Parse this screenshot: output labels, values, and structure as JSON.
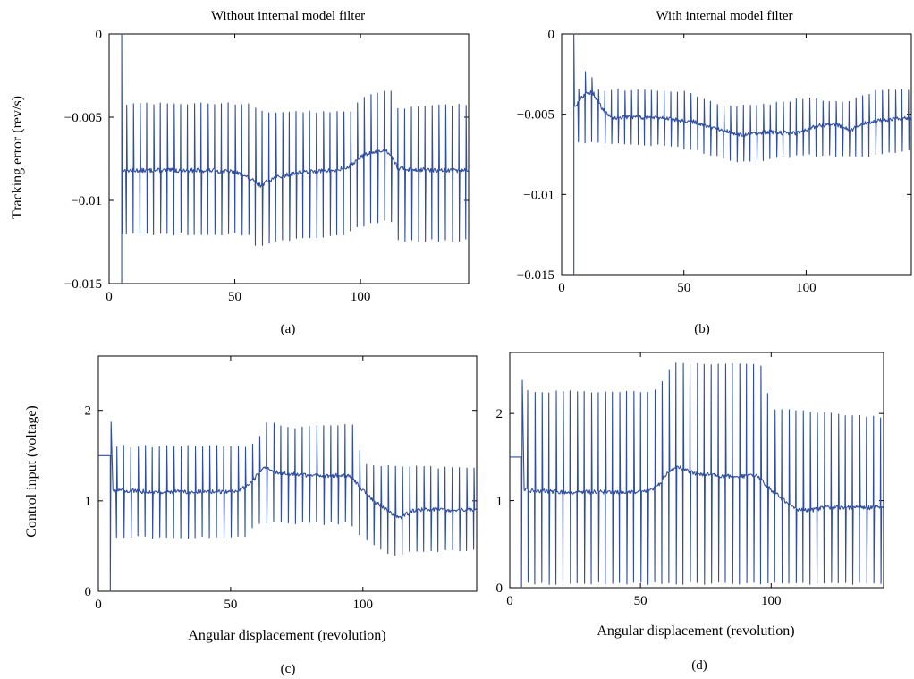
{
  "figure": {
    "panels": [
      {
        "id": "a",
        "title": "Without internal model filter",
        "ylabel": "Tracking error (rev/s)",
        "xlabel": "",
        "caption": "(a)",
        "x_ticks": [
          {
            "v": 0,
            "t": "0"
          },
          {
            "v": 50,
            "t": "50"
          },
          {
            "v": 100,
            "t": "100"
          }
        ],
        "y_ticks": [
          {
            "v": 0,
            "t": "0"
          },
          {
            "v": -0.005,
            "t": "−0.005"
          },
          {
            "v": -0.01,
            "t": "−0.01"
          },
          {
            "v": -0.015,
            "t": "−0.015"
          }
        ]
      },
      {
        "id": "b",
        "title": "With internal model filter",
        "ylabel": "",
        "xlabel": "",
        "caption": "(b)",
        "x_ticks": [
          {
            "v": 0,
            "t": "0"
          },
          {
            "v": 50,
            "t": "50"
          },
          {
            "v": 100,
            "t": "100"
          }
        ],
        "y_ticks": [
          {
            "v": 0,
            "t": "0"
          },
          {
            "v": -0.005,
            "t": "−0.005"
          },
          {
            "v": -0.01,
            "t": "−0.01"
          },
          {
            "v": -0.015,
            "t": "−0.015"
          }
        ]
      },
      {
        "id": "c",
        "title": "",
        "ylabel": "Control input (voltage)",
        "xlabel": "Angular displacement (revolution)",
        "caption": "(c)",
        "x_ticks": [
          {
            "v": 0,
            "t": "0"
          },
          {
            "v": 50,
            "t": "50"
          },
          {
            "v": 100,
            "t": "100"
          }
        ],
        "y_ticks": [
          {
            "v": 0,
            "t": "0"
          },
          {
            "v": 1,
            "t": "1"
          },
          {
            "v": 2,
            "t": "2"
          }
        ]
      },
      {
        "id": "d",
        "title": "",
        "ylabel": "",
        "xlabel": "Angular displacement (revolution)",
        "caption": "(d)",
        "x_ticks": [
          {
            "v": 0,
            "t": "0"
          },
          {
            "v": 50,
            "t": "50"
          },
          {
            "v": 100,
            "t": "100"
          }
        ],
        "y_ticks": [
          {
            "v": 0,
            "t": "0"
          },
          {
            "v": 1,
            "t": "1"
          },
          {
            "v": 2,
            "t": "2"
          }
        ]
      }
    ]
  },
  "chart_data": [
    {
      "panel": "a",
      "type": "line",
      "title": "Without internal model filter",
      "xlabel": "",
      "ylabel": "Tracking error (rev/s)",
      "xlim": [
        0,
        143
      ],
      "ylim": [
        -0.015,
        0
      ],
      "grid": false,
      "color": "#2f4ea0",
      "initial": {
        "x_start": 5,
        "y_start": -0.015,
        "y_peak": 0,
        "y_after": -0.012
      },
      "series": [
        {
          "x_start": 5.5,
          "spike_period": 2.7,
          "baseline_points": [
            [
              5.5,
              -0.0082
            ],
            [
              20,
              -0.0082
            ],
            [
              40,
              -0.0082
            ],
            [
              50,
              -0.0083
            ],
            [
              55,
              -0.0086
            ],
            [
              60,
              -0.0091
            ],
            [
              65,
              -0.0087
            ],
            [
              75,
              -0.0083
            ],
            [
              90,
              -0.0082
            ],
            [
              95,
              -0.008
            ],
            [
              100,
              -0.0074
            ],
            [
              105,
              -0.0071
            ],
            [
              110,
              -0.007
            ],
            [
              112,
              -0.0072
            ],
            [
              115,
              -0.0081
            ],
            [
              130,
              -0.0082
            ],
            [
              143,
              -0.0082
            ]
          ],
          "spike_high_points": [
            [
              5.5,
              -0.0042
            ],
            [
              55,
              -0.0042
            ],
            [
              60,
              -0.0047
            ],
            [
              97,
              -0.0047
            ],
            [
              100,
              -0.0038
            ],
            [
              112,
              -0.0033
            ],
            [
              114,
              -0.0045
            ],
            [
              143,
              -0.0042
            ]
          ],
          "spike_low_points": [
            [
              5.5,
              -0.012
            ],
            [
              55,
              -0.012
            ],
            [
              58,
              -0.0127
            ],
            [
              65,
              -0.0125
            ],
            [
              95,
              -0.012
            ],
            [
              100,
              -0.0115
            ],
            [
              112,
              -0.0112
            ],
            [
              114,
              -0.0124
            ],
            [
              143,
              -0.0124
            ]
          ]
        }
      ]
    },
    {
      "panel": "b",
      "type": "line",
      "title": "With internal model filter",
      "xlabel": "",
      "ylabel": "",
      "xlim": [
        0,
        143
      ],
      "ylim": [
        -0.015,
        0
      ],
      "grid": false,
      "color": "#2f4ea0",
      "initial": {
        "x_start": 5,
        "y_start": -0.015,
        "y_peak": 0,
        "y_after": -0.0045
      },
      "series": [
        {
          "x_start": 5.5,
          "spike_period": 2.7,
          "baseline_points": [
            [
              5.5,
              -0.0045
            ],
            [
              10,
              -0.0036
            ],
            [
              13,
              -0.0037
            ],
            [
              16,
              -0.0045
            ],
            [
              20,
              -0.0052
            ],
            [
              40,
              -0.0052
            ],
            [
              55,
              -0.0055
            ],
            [
              65,
              -0.006
            ],
            [
              75,
              -0.0063
            ],
            [
              85,
              -0.0061
            ],
            [
              95,
              -0.0062
            ],
            [
              105,
              -0.0057
            ],
            [
              112,
              -0.0056
            ],
            [
              118,
              -0.006
            ],
            [
              125,
              -0.0055
            ],
            [
              135,
              -0.0053
            ],
            [
              143,
              -0.0052
            ]
          ],
          "spike_high_points": [
            [
              5.5,
              -0.004
            ],
            [
              10,
              -0.0022
            ],
            [
              15,
              -0.0035
            ],
            [
              25,
              -0.0035
            ],
            [
              50,
              -0.0036
            ],
            [
              65,
              -0.0045
            ],
            [
              80,
              -0.0045
            ],
            [
              100,
              -0.004
            ],
            [
              115,
              -0.0043
            ],
            [
              130,
              -0.0035
            ],
            [
              143,
              -0.0035
            ]
          ],
          "spike_low_points": [
            [
              5.5,
              -0.0068
            ],
            [
              15,
              -0.0068
            ],
            [
              30,
              -0.0068
            ],
            [
              55,
              -0.0072
            ],
            [
              70,
              -0.008
            ],
            [
              85,
              -0.0078
            ],
            [
              100,
              -0.0075
            ],
            [
              120,
              -0.0077
            ],
            [
              143,
              -0.0072
            ]
          ]
        }
      ]
    },
    {
      "panel": "c",
      "type": "line",
      "title": "",
      "xlabel": "Angular displacement (revolution)",
      "ylabel": "Control input (voltage)",
      "xlim": [
        0,
        143
      ],
      "ylim": [
        0,
        2.6
      ],
      "grid": false,
      "color": "#2f4ea0",
      "initial": {
        "x_start": 0,
        "y_start": 1.5,
        "x_drop": 4.5,
        "y_drop": 0,
        "y_peak": 1.87
      },
      "series": [
        {
          "x_start": 5.5,
          "spike_period": 2.7,
          "baseline_points": [
            [
              5.5,
              1.12
            ],
            [
              20,
              1.1
            ],
            [
              50,
              1.1
            ],
            [
              56,
              1.15
            ],
            [
              60,
              1.28
            ],
            [
              63,
              1.38
            ],
            [
              67,
              1.32
            ],
            [
              80,
              1.28
            ],
            [
              95,
              1.28
            ],
            [
              100,
              1.12
            ],
            [
              105,
              0.98
            ],
            [
              110,
              0.88
            ],
            [
              114,
              0.82
            ],
            [
              120,
              0.9
            ],
            [
              143,
              0.9
            ]
          ],
          "spike_high_points": [
            [
              5.5,
              1.6
            ],
            [
              55,
              1.6
            ],
            [
              60,
              1.65
            ],
            [
              64,
              1.9
            ],
            [
              70,
              1.8
            ],
            [
              96,
              1.85
            ],
            [
              100,
              1.4
            ],
            [
              143,
              1.35
            ]
          ],
          "spike_low_points": [
            [
              5.5,
              0.6
            ],
            [
              55,
              0.6
            ],
            [
              60,
              0.75
            ],
            [
              95,
              0.75
            ],
            [
              100,
              0.6
            ],
            [
              110,
              0.4
            ],
            [
              120,
              0.45
            ],
            [
              143,
              0.45
            ]
          ]
        }
      ]
    },
    {
      "panel": "d",
      "type": "line",
      "title": "",
      "xlabel": "Angular displacement (revolution)",
      "ylabel": "",
      "xlim": [
        0,
        143
      ],
      "ylim": [
        0,
        2.7
      ],
      "grid": false,
      "color": "#2f4ea0",
      "initial": {
        "x_start": 0,
        "y_start": 1.5,
        "x_drop": 4.5,
        "y_drop": 0,
        "y_peak": 2.38
      },
      "series": [
        {
          "x_start": 5.5,
          "spike_period": 2.7,
          "baseline_points": [
            [
              5.5,
              1.12
            ],
            [
              20,
              1.1
            ],
            [
              50,
              1.1
            ],
            [
              56,
              1.15
            ],
            [
              60,
              1.3
            ],
            [
              64,
              1.4
            ],
            [
              70,
              1.32
            ],
            [
              80,
              1.28
            ],
            [
              95,
              1.28
            ],
            [
              100,
              1.12
            ],
            [
              105,
              1.0
            ],
            [
              110,
              0.9
            ],
            [
              114,
              0.88
            ],
            [
              120,
              0.92
            ],
            [
              143,
              0.92
            ]
          ],
          "spike_high_points": [
            [
              5.5,
              2.25
            ],
            [
              55,
              2.25
            ],
            [
              60,
              2.45
            ],
            [
              63,
              2.58
            ],
            [
              96,
              2.55
            ],
            [
              100,
              2.05
            ],
            [
              143,
              1.95
            ]
          ],
          "spike_low_points": [
            [
              5.5,
              0.05
            ],
            [
              143,
              0.05
            ]
          ]
        }
      ]
    }
  ]
}
